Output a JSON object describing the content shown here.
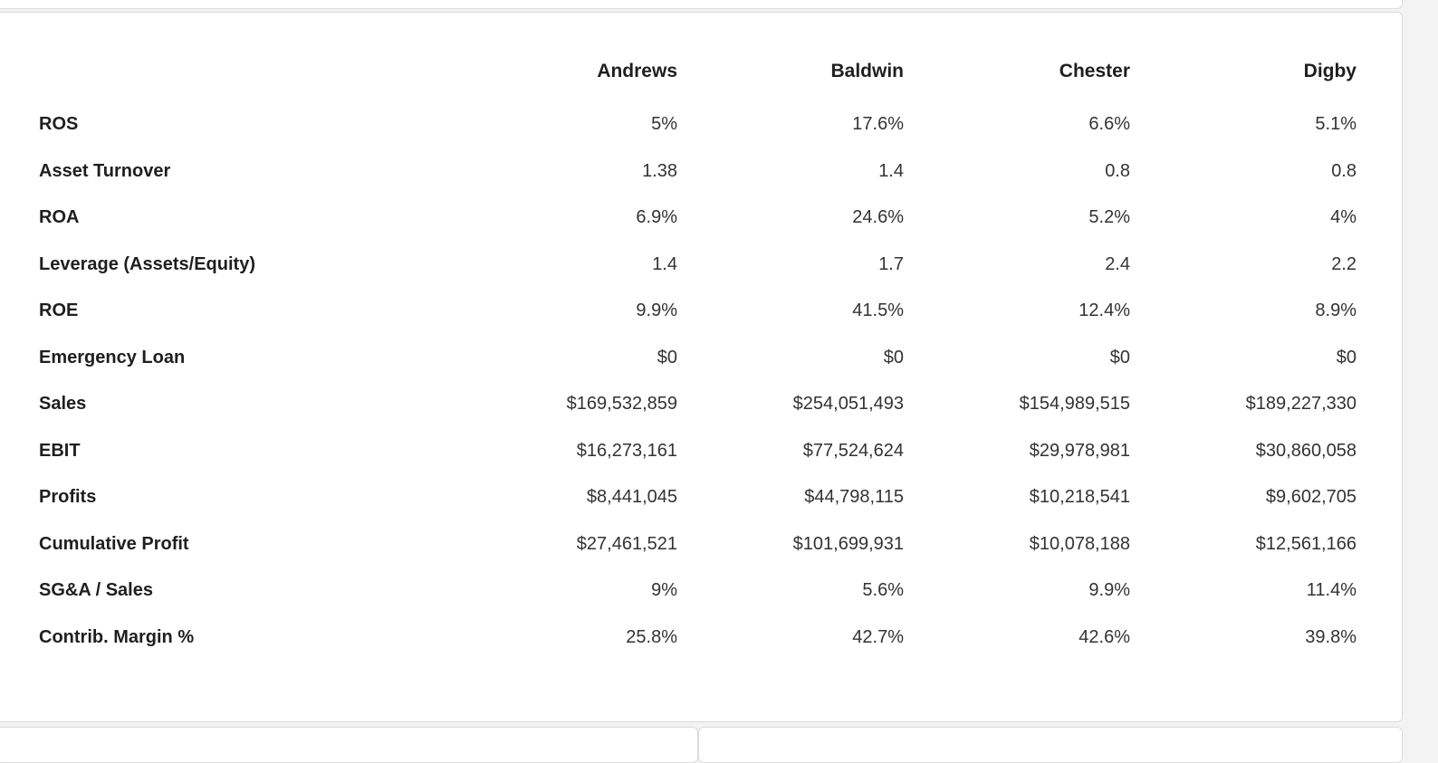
{
  "table": {
    "columns": [
      "Andrews",
      "Baldwin",
      "Chester",
      "Digby"
    ],
    "rows": [
      {
        "label": "ROS",
        "values": [
          "5%",
          "17.6%",
          "6.6%",
          "5.1%"
        ]
      },
      {
        "label": "Asset Turnover",
        "values": [
          "1.38",
          "1.4",
          "0.8",
          "0.8"
        ]
      },
      {
        "label": "ROA",
        "values": [
          "6.9%",
          "24.6%",
          "5.2%",
          "4%"
        ]
      },
      {
        "label": "Leverage (Assets/Equity)",
        "values": [
          "1.4",
          "1.7",
          "2.4",
          "2.2"
        ]
      },
      {
        "label": "ROE",
        "values": [
          "9.9%",
          "41.5%",
          "12.4%",
          "8.9%"
        ]
      },
      {
        "label": "Emergency Loan",
        "values": [
          "$0",
          "$0",
          "$0",
          "$0"
        ]
      },
      {
        "label": "Sales",
        "values": [
          "$169,532,859",
          "$254,051,493",
          "$154,989,515",
          "$189,227,330"
        ]
      },
      {
        "label": "EBIT",
        "values": [
          "$16,273,161",
          "$77,524,624",
          "$29,978,981",
          "$30,860,058"
        ]
      },
      {
        "label": "Profits",
        "values": [
          "$8,441,045",
          "$44,798,115",
          "$10,218,541",
          "$9,602,705"
        ]
      },
      {
        "label": "Cumulative Profit",
        "values": [
          "$27,461,521",
          "$101,699,931",
          "$10,078,188",
          "$12,561,166"
        ]
      },
      {
        "label": "SG&A / Sales",
        "values": [
          "9%",
          "5.6%",
          "9.9%",
          "11.4%"
        ]
      },
      {
        "label": "Contrib. Margin %",
        "values": [
          "25.8%",
          "42.7%",
          "42.6%",
          "39.8%"
        ]
      }
    ]
  }
}
